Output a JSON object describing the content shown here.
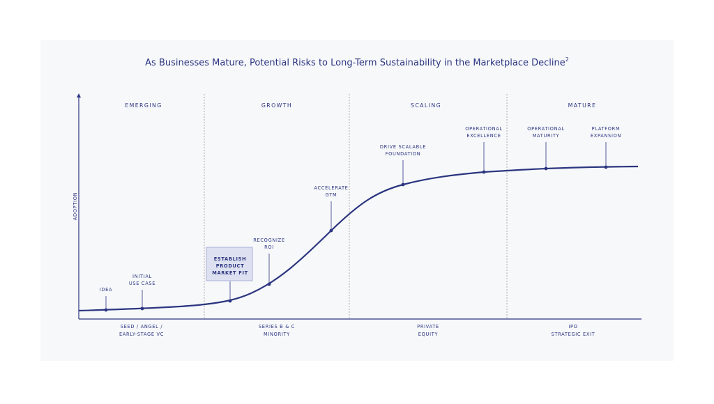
{
  "title": "As Businesses Mature, Potential Risks to Long-Term Sustainability in the Marketplace Decline",
  "title_superscript": "2",
  "y_axis_label": "ADOPTION",
  "phases": [
    "EMERGING",
    "GROWTH",
    "SCALING",
    "MATURE"
  ],
  "milestones": [
    [
      "IDEA"
    ],
    [
      "INITIAL",
      "USE CASE"
    ],
    [
      "ESTABLISH",
      "PRODUCT",
      "MARKET FIT"
    ],
    [
      "RECOGNIZE",
      "ROI"
    ],
    [
      "ACCELERATE",
      "GTM"
    ],
    [
      "DRIVE SCALABLE",
      "FOUNDATION"
    ],
    [
      "OPERATIONAL",
      "EXCELLENCE"
    ],
    [
      "OPERATIONAL",
      "MATURITY"
    ],
    [
      "PLATFORM",
      "EXPANSION"
    ]
  ],
  "funding_stages": [
    [
      "SEED / ANGEL /",
      "EARLY-STAGE VC"
    ],
    [
      "SERIES B & C",
      "MINORITY"
    ],
    [
      "PRIVATE",
      "EQUITY"
    ],
    [
      "IPO",
      "STRATEGIC EXIT"
    ]
  ]
}
